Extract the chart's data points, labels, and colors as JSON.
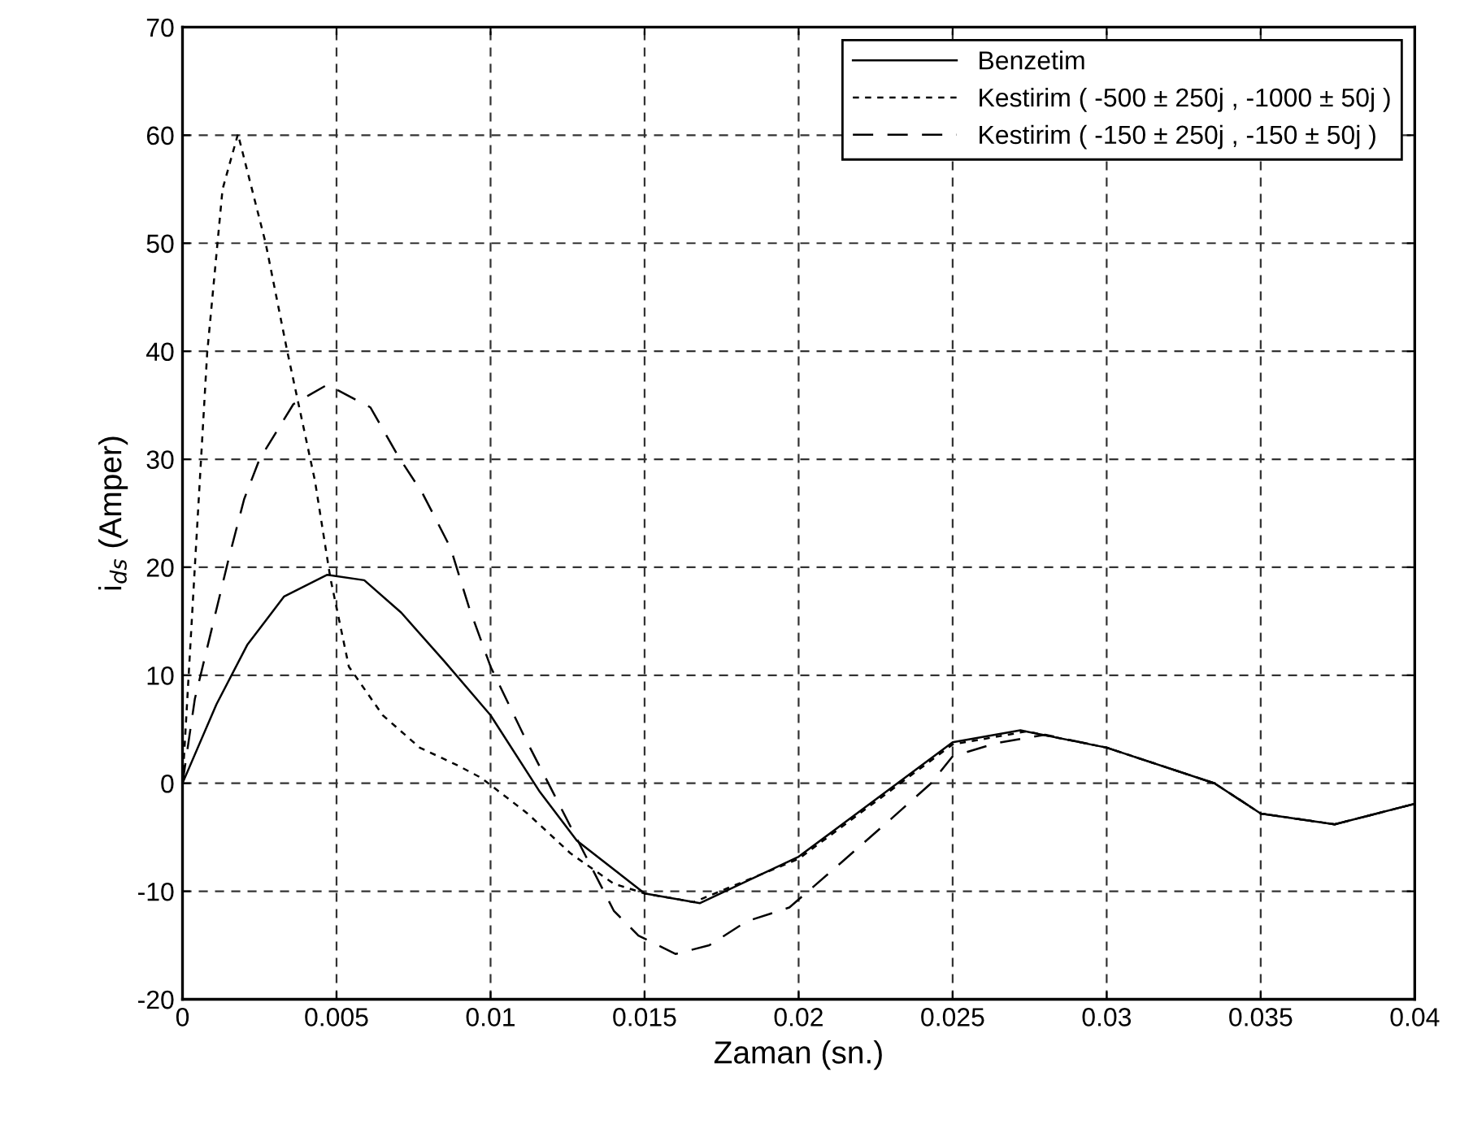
{
  "chart_data": {
    "type": "line",
    "xlabel": "Zaman (sn.)",
    "ylabel": "i$_{ds}$ (Amper)",
    "xlim": [
      0,
      0.04
    ],
    "ylim": [
      -20,
      70
    ],
    "xticks": [
      0,
      0.005,
      0.01,
      0.015,
      0.02,
      0.025,
      0.03,
      0.035,
      0.04
    ],
    "yticks": [
      -20,
      -10,
      0,
      10,
      20,
      30,
      40,
      50,
      60,
      70
    ],
    "grid": true,
    "legend": "top right",
    "marker": "none",
    "series": [
      {
        "name": "Benzetim",
        "color": "#000000",
        "line_style": "solid",
        "x": [
          0,
          0.0011,
          0.0021,
          0.0033,
          0.0047,
          0.0059,
          0.0071,
          0.0085,
          0.01,
          0.0116,
          0.0128,
          0.015,
          0.0168,
          0.02,
          0.025,
          0.0272,
          0.03,
          0.0335,
          0.035,
          0.0374,
          0.04
        ],
        "values": [
          0,
          7.3,
          12.8,
          17.3,
          19.3,
          18.8,
          15.8,
          11.3,
          6.3,
          -0.8,
          -5.3,
          -10.2,
          -11.1,
          -6.8,
          3.8,
          4.9,
          3.3,
          0,
          -2.8,
          -3.8,
          -1.9
        ]
      },
      {
        "name": "Kestirim ( -500 ± 250j , -1000 ± 50j )",
        "color": "#000000",
        "line_style": "dotted",
        "x": [
          0,
          0.0004,
          0.0008,
          0.0013,
          0.0018,
          0.0027,
          0.0034,
          0.0043,
          0.0048,
          0.0054,
          0.0065,
          0.0077,
          0.0089,
          0.0097,
          0.0112,
          0.0126,
          0.014,
          0.015,
          0.0166,
          0.02,
          0.025,
          0.0274,
          0.03,
          0.0335,
          0.035,
          0.0374,
          0.04
        ],
        "values": [
          0,
          20,
          39.8,
          55,
          60.1,
          50,
          40,
          28,
          19,
          10.8,
          6.3,
          3.3,
          1.7,
          0.5,
          -2.8,
          -6.5,
          -9.3,
          -10.2,
          -11,
          -7,
          3.6,
          4.8,
          3.3,
          0,
          -2.8,
          -3.8,
          -1.9
        ]
      },
      {
        "name": "Kestirim ( -150 ± 250j , -150 ± 50j )",
        "color": "#000000",
        "line_style": "dashed",
        "x": [
          0,
          0.0004,
          0.0015,
          0.002,
          0.0025,
          0.0036,
          0.0047,
          0.0061,
          0.007,
          0.0078,
          0.0087,
          0.0093,
          0.01,
          0.0111,
          0.0122,
          0.014,
          0.0148,
          0.016,
          0.0171,
          0.0183,
          0.0197,
          0.0214,
          0.023,
          0.0243,
          0.025,
          0.0264,
          0.028,
          0.03,
          0.0335,
          0.035,
          0.0374,
          0.04
        ],
        "values": [
          0,
          7.8,
          20.8,
          26.3,
          30,
          35.1,
          36.9,
          34.8,
          30.3,
          26.8,
          21.8,
          16.3,
          10.8,
          4.3,
          -1.8,
          -11.8,
          -14.1,
          -15.8,
          -15,
          -12.8,
          -11.5,
          -7.3,
          -3.3,
          0,
          2.5,
          3.7,
          4.5,
          3.3,
          0,
          -2.8,
          -3.8,
          -1.9
        ]
      }
    ]
  }
}
